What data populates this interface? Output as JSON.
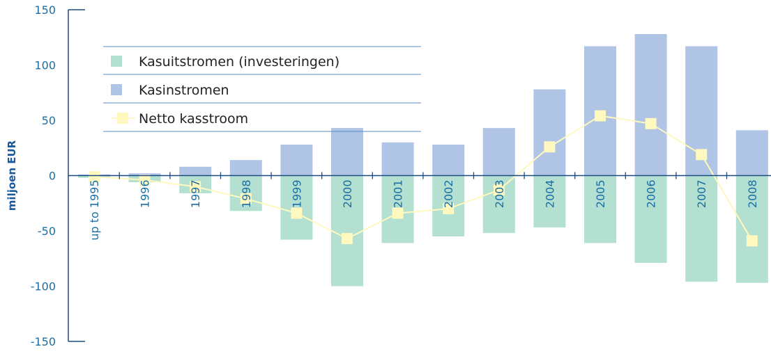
{
  "chart_data": {
    "type": "bar",
    "ylabel": "miljoen EUR",
    "ylim": [
      -150,
      150
    ],
    "yticks": [
      150,
      100,
      50,
      0,
      -50,
      -100,
      -150
    ],
    "grid": false,
    "legend_position": "top-left",
    "categories": [
      "up to 1995",
      "1996",
      "1997",
      "1998",
      "1999",
      "2000",
      "2001",
      "2002",
      "2003",
      "2004",
      "2005",
      "2006",
      "2007",
      "2008"
    ],
    "series": [
      {
        "name": "Kasuitstromen (investeringen)",
        "type": "bar",
        "color": "#b3e0d0",
        "values": [
          -2,
          -6,
          -16,
          -32,
          -58,
          -100,
          -61,
          -55,
          -52,
          -47,
          -61,
          -79,
          -96,
          -97
        ]
      },
      {
        "name": "Kasinstromen",
        "type": "bar",
        "color": "#b0c4e6",
        "values": [
          1,
          2,
          8,
          14,
          28,
          43,
          30,
          28,
          43,
          78,
          117,
          128,
          117,
          41
        ]
      },
      {
        "name": "Netto kasstroom",
        "type": "line",
        "color": "#fff8bf",
        "values": [
          -1,
          -4,
          -10,
          -21,
          -34,
          -57,
          -34,
          -30,
          -13,
          26,
          54,
          47,
          19,
          -59
        ]
      }
    ]
  },
  "colors": {
    "axis": "#1a4a80",
    "text": "#1a6fa5",
    "ylabel": "#1a5a9c",
    "legend_rule": "#5a8ec4"
  }
}
